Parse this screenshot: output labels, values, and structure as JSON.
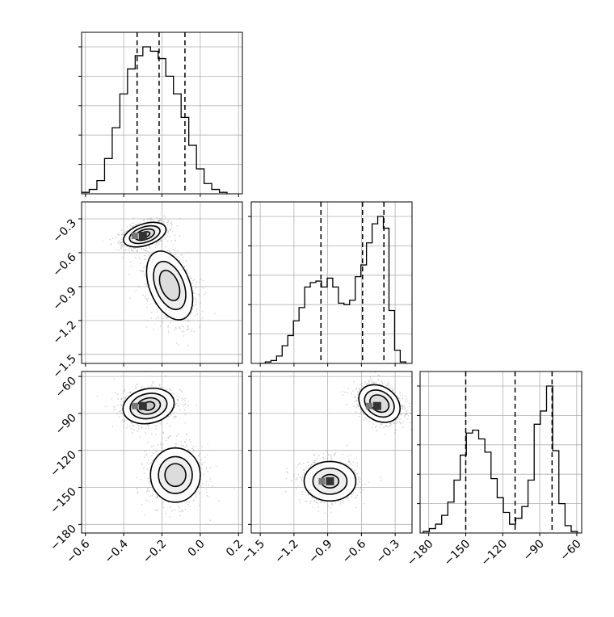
{
  "chart_data": {
    "type": "corner",
    "grid": true,
    "title": "",
    "colors": {
      "ink": "#000000",
      "grid": "#b0b0b0",
      "scatter": "#9a9a9a"
    },
    "axes": {
      "p1": {
        "range": [
          -0.62,
          0.22
        ],
        "ticks": [
          -0.6,
          -0.4,
          -0.2,
          0.0,
          0.2
        ],
        "tick_labels": [
          "−0.6",
          "−0.4",
          "−0.2",
          "0.0",
          "0.2"
        ]
      },
      "p2": {
        "range": [
          -1.58,
          -0.15
        ],
        "ticks": [
          -1.5,
          -1.2,
          -0.9,
          -0.6,
          -0.3
        ],
        "tick_labels": [
          "−1.5",
          "−1.2",
          "−0.9",
          "−0.6",
          "−0.3"
        ]
      },
      "p3": {
        "range": [
          -187,
          -56
        ],
        "ticks": [
          -180,
          -150,
          -120,
          -90,
          -60
        ],
        "tick_labels": [
          "−180",
          "−150",
          "−120",
          "−90",
          "−60"
        ]
      }
    },
    "histograms": [
      {
        "param": "p1",
        "quantiles": [
          -0.33,
          -0.215,
          -0.08
        ],
        "bins": [
          {
            "x": -0.6,
            "c": 0.01
          },
          {
            "x": -0.56,
            "c": 0.03
          },
          {
            "x": -0.52,
            "c": 0.09
          },
          {
            "x": -0.48,
            "c": 0.24
          },
          {
            "x": -0.44,
            "c": 0.45
          },
          {
            "x": -0.4,
            "c": 0.68
          },
          {
            "x": -0.36,
            "c": 0.85
          },
          {
            "x": -0.32,
            "c": 0.94
          },
          {
            "x": -0.28,
            "c": 1.0
          },
          {
            "x": -0.24,
            "c": 0.97
          },
          {
            "x": -0.2,
            "c": 0.92
          },
          {
            "x": -0.16,
            "c": 0.8
          },
          {
            "x": -0.12,
            "c": 0.68
          },
          {
            "x": -0.08,
            "c": 0.52
          },
          {
            "x": -0.04,
            "c": 0.33
          },
          {
            "x": 0.0,
            "c": 0.17
          },
          {
            "x": 0.04,
            "c": 0.07
          },
          {
            "x": 0.08,
            "c": 0.03
          },
          {
            "x": 0.12,
            "c": 0.01
          }
        ]
      },
      {
        "param": "p2",
        "quantiles": [
          -0.96,
          -0.59,
          -0.4
        ],
        "bins": [
          {
            "x": -1.48,
            "c": 0.0
          },
          {
            "x": -1.43,
            "c": 0.01
          },
          {
            "x": -1.38,
            "c": 0.02
          },
          {
            "x": -1.33,
            "c": 0.05
          },
          {
            "x": -1.28,
            "c": 0.12
          },
          {
            "x": -1.23,
            "c": 0.19
          },
          {
            "x": -1.18,
            "c": 0.29
          },
          {
            "x": -1.13,
            "c": 0.38
          },
          {
            "x": -1.08,
            "c": 0.52
          },
          {
            "x": -1.03,
            "c": 0.55
          },
          {
            "x": -0.98,
            "c": 0.56
          },
          {
            "x": -0.93,
            "c": 0.52
          },
          {
            "x": -0.88,
            "c": 0.58
          },
          {
            "x": -0.83,
            "c": 0.52
          },
          {
            "x": -0.78,
            "c": 0.41
          },
          {
            "x": -0.73,
            "c": 0.4
          },
          {
            "x": -0.68,
            "c": 0.43
          },
          {
            "x": -0.63,
            "c": 0.59
          },
          {
            "x": -0.58,
            "c": 0.67
          },
          {
            "x": -0.53,
            "c": 0.82
          },
          {
            "x": -0.48,
            "c": 0.95
          },
          {
            "x": -0.43,
            "c": 1.0
          },
          {
            "x": -0.38,
            "c": 0.92
          },
          {
            "x": -0.33,
            "c": 0.36
          },
          {
            "x": -0.28,
            "c": 0.09
          },
          {
            "x": -0.23,
            "c": 0.01
          }
        ]
      },
      {
        "param": "p3",
        "quantiles": [
          -150,
          -110,
          -80
        ],
        "bins": [
          {
            "x": -182,
            "c": 0.01
          },
          {
            "x": -177,
            "c": 0.03
          },
          {
            "x": -172,
            "c": 0.06
          },
          {
            "x": -167,
            "c": 0.12
          },
          {
            "x": -162,
            "c": 0.21
          },
          {
            "x": -157,
            "c": 0.36
          },
          {
            "x": -152,
            "c": 0.53
          },
          {
            "x": -147,
            "c": 0.68
          },
          {
            "x": -142,
            "c": 0.7
          },
          {
            "x": -137,
            "c": 0.64
          },
          {
            "x": -132,
            "c": 0.55
          },
          {
            "x": -127,
            "c": 0.37
          },
          {
            "x": -122,
            "c": 0.24
          },
          {
            "x": -117,
            "c": 0.14
          },
          {
            "x": -112,
            "c": 0.06
          },
          {
            "x": -107,
            "c": 0.1
          },
          {
            "x": -102,
            "c": 0.18
          },
          {
            "x": -97,
            "c": 0.36
          },
          {
            "x": -92,
            "c": 0.74
          },
          {
            "x": -87,
            "c": 0.83
          },
          {
            "x": -82,
            "c": 1.0
          },
          {
            "x": -77,
            "c": 0.56
          },
          {
            "x": -72,
            "c": 0.2
          },
          {
            "x": -67,
            "c": 0.05
          },
          {
            "x": -62,
            "c": 0.01
          }
        ]
      }
    ],
    "joint": [
      {
        "x": "p1",
        "y": "p2",
        "modes": [
          {
            "center": [
              -0.29,
              -0.44
            ],
            "spread": [
              0.115,
              0.095
            ],
            "angle_deg": 18,
            "contour_scale": [
              1.0,
              0.72,
              0.46,
              0.24
            ],
            "peak": [
              -0.3,
              -0.45
            ]
          },
          {
            "center": [
              -0.16,
              -0.89
            ],
            "spread": [
              0.105,
              0.32
            ],
            "angle_deg": 22,
            "contour_scale": [
              1.0,
              0.7,
              0.44
            ]
          }
        ]
      },
      {
        "x": "p1",
        "y": "p3",
        "modes": [
          {
            "center": [
              -0.27,
              -84
            ],
            "spread": [
              0.135,
              14
            ],
            "angle_deg": 12,
            "contour_scale": [
              1.0,
              0.72,
              0.46,
              0.24
            ],
            "peak": [
              -0.3,
              -84
            ]
          },
          {
            "center": [
              -0.13,
              -140
            ],
            "spread": [
              0.13,
              22
            ],
            "angle_deg": 0,
            "contour_scale": [
              1.0,
              0.68,
              0.42
            ]
          }
        ]
      },
      {
        "x": "p2",
        "y": "p3",
        "modes": [
          {
            "center": [
              -0.44,
              -82
            ],
            "spread": [
              0.15,
              18
            ],
            "angle_deg": 55,
            "contour_scale": [
              1.0,
              0.72,
              0.46
            ],
            "peak": [
              -0.46,
              -84
            ]
          },
          {
            "center": [
              -0.88,
              -145
            ],
            "spread": [
              0.23,
              16
            ],
            "angle_deg": 0,
            "contour_scale": [
              1.0,
              0.66,
              0.34
            ],
            "peak": [
              -0.88,
              -145
            ]
          }
        ]
      }
    ]
  }
}
